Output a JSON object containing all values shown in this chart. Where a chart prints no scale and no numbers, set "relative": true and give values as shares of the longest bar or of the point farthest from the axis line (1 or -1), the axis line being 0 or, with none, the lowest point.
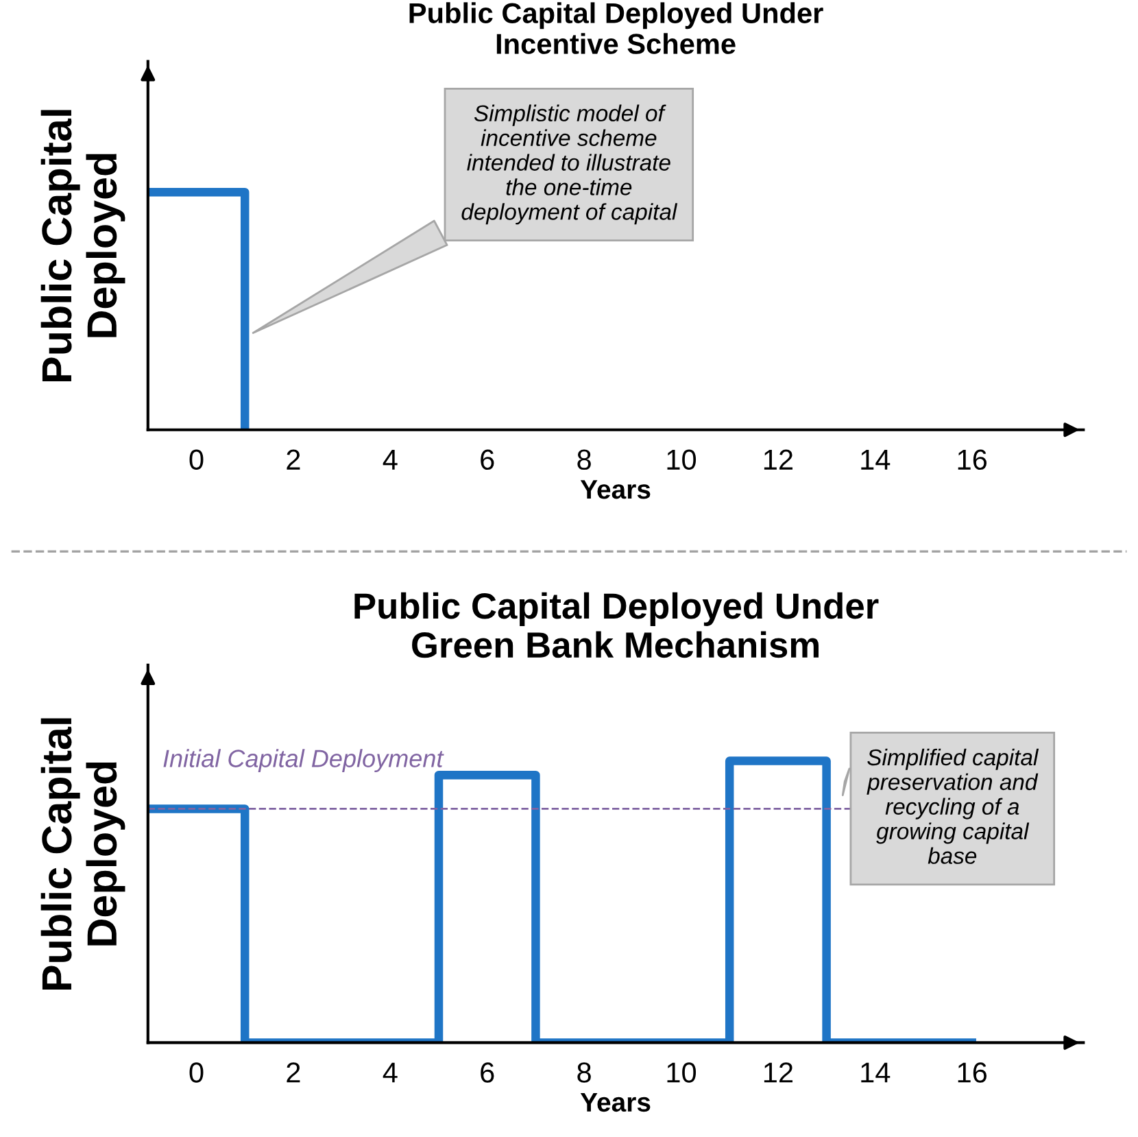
{
  "chart_data": [
    {
      "type": "step",
      "title": "Public Capital Deployed Under\nIncentive Scheme",
      "xlabel": "Years",
      "ylabel": "Public Capital\nDeployed",
      "relative": true,
      "xlim": [
        -1,
        18.3
      ],
      "xticks": [
        0,
        2,
        4,
        6,
        8,
        10,
        12,
        14,
        16
      ],
      "tick_labels": "x",
      "grid": false,
      "legend": false,
      "series": [
        {
          "color": "#1f75c6",
          "x": [
            -1,
            1
          ],
          "values": [
            1,
            0
          ]
        }
      ],
      "annotations": [
        "Simplistic model of\nincentive scheme\nintended to illustrate\nthe one-time\ndeployment of capital"
      ]
    },
    {
      "type": "step",
      "title": "Public Capital Deployed Under\nGreen Bank Mechanism",
      "xlabel": "Years",
      "ylabel": "Public Capital\nDeployed",
      "relative": true,
      "xlim": [
        -1,
        18.3
      ],
      "xticks": [
        0,
        2,
        4,
        6,
        8,
        10,
        12,
        14,
        16
      ],
      "tick_labels": "x",
      "grid": false,
      "legend": false,
      "series": [
        {
          "color": "#1f75c6",
          "x": [
            -1,
            1,
            5,
            7,
            11,
            13,
            16
          ],
          "values": [
            0.83,
            0,
            0.95,
            0,
            1,
            0,
            0
          ]
        }
      ],
      "ref_lines": [
        {
          "axis": "y",
          "value": 0.83,
          "label": "Initial Capital Deployment",
          "color": "#8064a2",
          "line_style": "dashed"
        }
      ],
      "annotations": [
        "Simplified capital\npreservation and\nrecycling of a\ngrowing capital\nbase"
      ]
    }
  ]
}
